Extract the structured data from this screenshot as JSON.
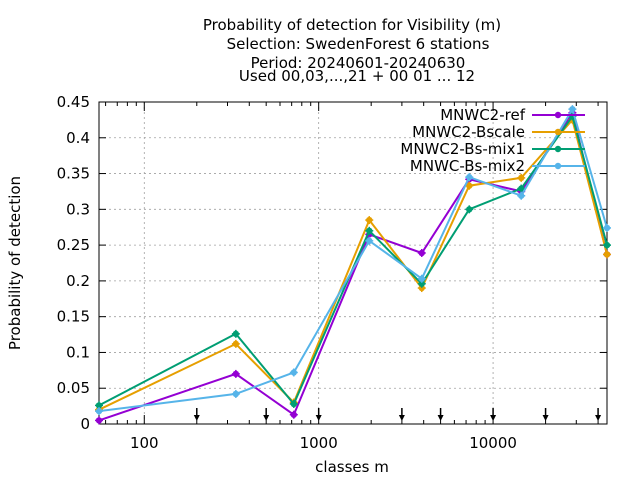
{
  "chart_data": {
    "type": "line",
    "title_lines": [
      "Probability of detection  for Visibility (m)",
      "Selection: SwedenForest      6 stations",
      "Period: 20240601-20240630",
      "Used 00,03,...,21 + 00 01 ... 12"
    ],
    "xlabel": "classes m",
    "ylabel": "Probability of detection",
    "x_scale": "log",
    "xlim": [
      55,
      45000
    ],
    "ylim": [
      0,
      0.45
    ],
    "x_tick_labels": [
      {
        "value": 100,
        "label": "100"
      },
      {
        "value": 1000,
        "label": "1000"
      },
      {
        "value": 10000,
        "label": "10000"
      }
    ],
    "y_tick_labels": [
      {
        "value": 0,
        "label": "0"
      },
      {
        "value": 0.05,
        "label": "0.05"
      },
      {
        "value": 0.1,
        "label": "0.1"
      },
      {
        "value": 0.15,
        "label": "0.15"
      },
      {
        "value": 0.2,
        "label": "0.2"
      },
      {
        "value": 0.25,
        "label": "0.25"
      },
      {
        "value": 0.3,
        "label": "0.3"
      },
      {
        "value": 0.35,
        "label": "0.35"
      },
      {
        "value": 0.4,
        "label": "0.4"
      },
      {
        "value": 0.45,
        "label": "0.45"
      }
    ],
    "class_boundary_arrows": [
      200,
      500,
      1000,
      3000,
      5000,
      10000,
      20000,
      40000
    ],
    "grid": true,
    "legend_position": "top-right",
    "series": [
      {
        "name": "MNWC2-ref",
        "color": "#9400d3",
        "marker": "plus",
        "x": [
          55,
          335,
          720,
          1950,
          3900,
          7300,
          14500,
          28500,
          45000
        ],
        "y": [
          0.005,
          0.07,
          0.013,
          0.265,
          0.239,
          0.342,
          0.325,
          0.435,
          0.237
        ]
      },
      {
        "name": "MNWC2-Bscale",
        "color": "#e69f00",
        "marker": "plus",
        "x": [
          55,
          335,
          720,
          1950,
          3900,
          7300,
          14500,
          28500,
          45000
        ],
        "y": [
          0.02,
          0.112,
          0.03,
          0.285,
          0.19,
          0.333,
          0.344,
          0.425,
          0.237
        ]
      },
      {
        "name": "MNWC2-Bs-mix1",
        "color": "#009e73",
        "marker": "plus",
        "x": [
          55,
          335,
          720,
          1950,
          3900,
          7300,
          14500,
          28500,
          45000
        ],
        "y": [
          0.026,
          0.126,
          0.028,
          0.27,
          0.196,
          0.3,
          0.329,
          0.43,
          0.25
        ]
      },
      {
        "name": "MNWC-Bs-mix2",
        "color": "#56b4e9",
        "marker": "plus",
        "x": [
          55,
          335,
          720,
          1950,
          3900,
          7300,
          14500,
          28500,
          45000
        ],
        "y": [
          0.018,
          0.042,
          0.072,
          0.256,
          0.203,
          0.345,
          0.319,
          0.44,
          0.274
        ]
      }
    ]
  }
}
